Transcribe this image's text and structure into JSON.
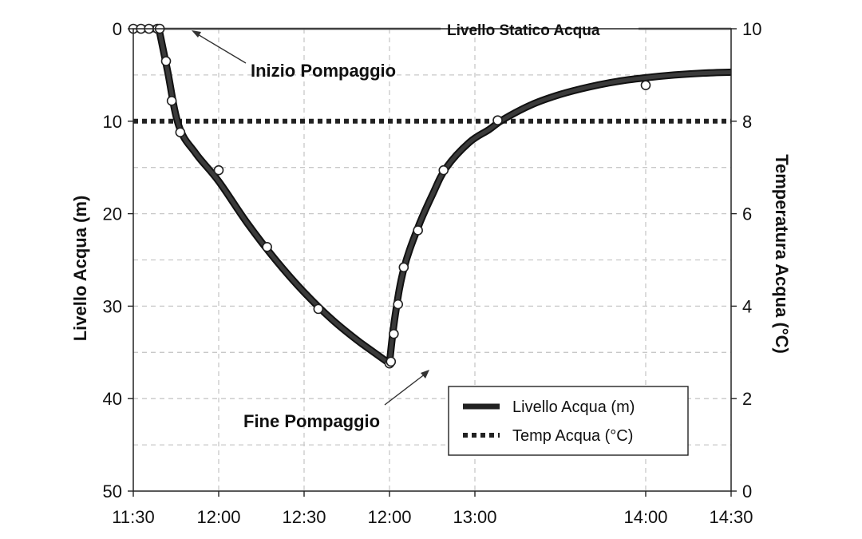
{
  "chart_data": {
    "type": "line",
    "ylabel_left": "Livello Acqua (m)",
    "ylabel_right": "Temperatura Acqua (°C)",
    "x_ticks": [
      "11:30",
      "12:00",
      "12:30",
      "12:00",
      "13:00",
      "14:00",
      "14:30"
    ],
    "x_tick_minutes": [
      0,
      30,
      60,
      90,
      120,
      180,
      210
    ],
    "y_left_ticks": [
      "0",
      "10",
      "20",
      "30",
      "40",
      "50"
    ],
    "y_left_tick_values": [
      0,
      10,
      20,
      30,
      40,
      50
    ],
    "y_right_ticks": [
      "0",
      "2",
      "4",
      "6",
      "8",
      "10"
    ],
    "y_right_tick_values": [
      0,
      2,
      4,
      6,
      8,
      10
    ],
    "ylim_left": [
      50,
      0
    ],
    "ylim_right": [
      0,
      10
    ],
    "xlim_minutes": [
      0,
      210
    ],
    "grid": true,
    "legend": {
      "position": "bottom-right"
    },
    "series": [
      {
        "name": "Livello Acqua (m)",
        "axis": "left",
        "style": "solid",
        "color": "#222222",
        "markers": true,
        "x_minutes": [
          0,
          2.7,
          5.5,
          8.5,
          9.3,
          11.5,
          13.5,
          16.5,
          30,
          47,
          65,
          90,
          90.5,
          91.5,
          93,
          95,
          100,
          109,
          128,
          180
        ],
        "values": [
          0,
          0,
          0,
          0,
          0,
          3.5,
          7.8,
          11.2,
          15.3,
          23.6,
          30.3,
          36.2,
          36,
          33,
          29.8,
          25.8,
          21.8,
          15.3,
          9.9,
          6.1
        ],
        "curve_x_minutes": [
          0,
          9,
          12,
          16,
          22,
          30,
          40,
          50,
          60,
          70,
          80,
          90,
          92,
          95,
          100,
          105,
          110,
          118,
          125,
          130,
          140,
          150,
          160,
          170,
          180,
          190,
          200,
          210
        ],
        "curve_values": [
          0,
          0,
          4.5,
          10.5,
          13.5,
          16.5,
          21.0,
          25.0,
          28.5,
          31.5,
          34.0,
          36.2,
          31.0,
          26.0,
          21.5,
          18.0,
          15.0,
          12.3,
          10.9,
          9.8,
          8.2,
          7.1,
          6.3,
          5.7,
          5.3,
          5.0,
          4.8,
          4.7
        ]
      },
      {
        "name": "Temp Acqua (°C)",
        "axis": "right",
        "style": "dotted",
        "color": "#222222",
        "x_minutes": [
          0,
          210
        ],
        "values": [
          8,
          8
        ]
      }
    ],
    "annotations": [
      {
        "text": "Livello Statico Acqua"
      },
      {
        "text": "Inizio Pompaggio"
      },
      {
        "text": "Fine Pompaggio"
      }
    ]
  }
}
